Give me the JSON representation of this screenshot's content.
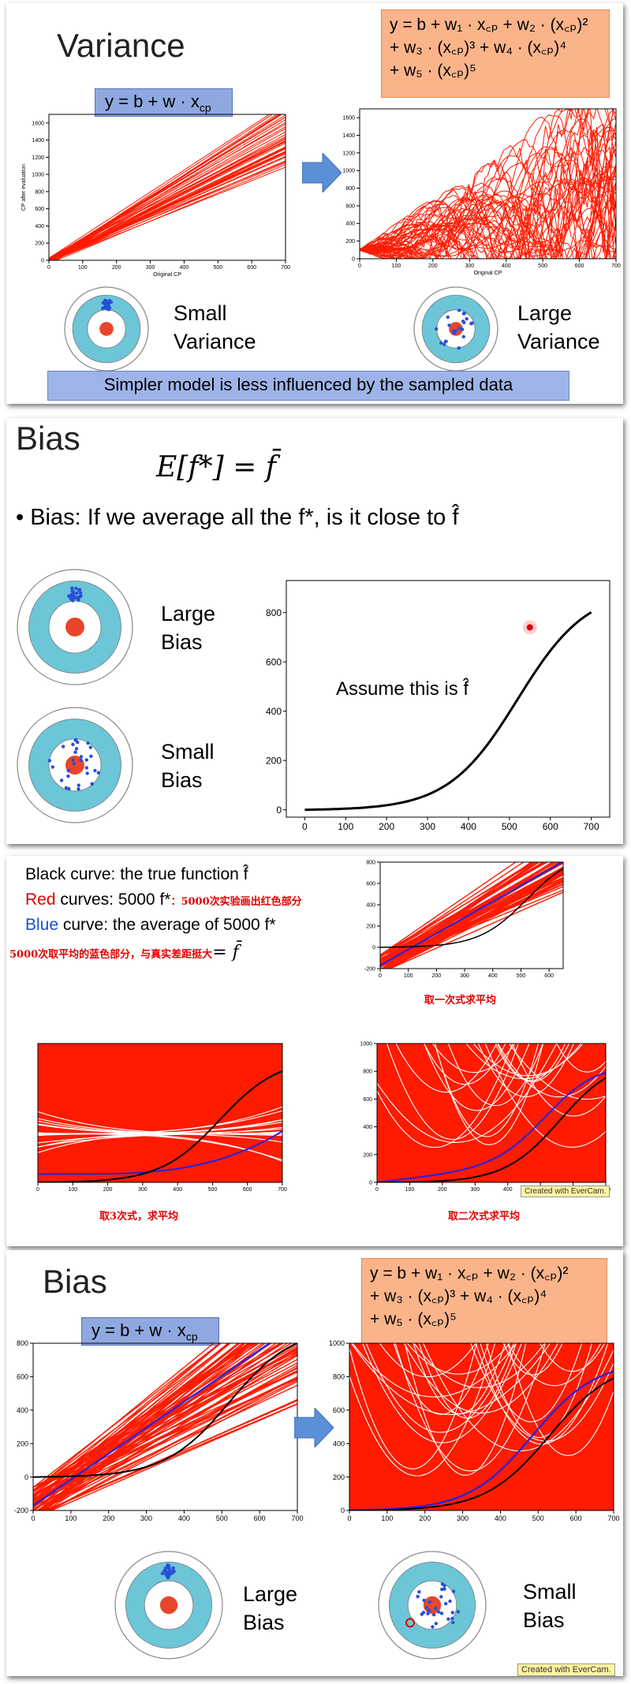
{
  "slide1": {
    "title": "Variance",
    "model_simple": "y = b + w · x",
    "model_simple_sub": "cp",
    "model_complex_lines": [
      "y = b + w₁ · x꜀ₚ + w₂ · (x꜀ₚ)²",
      "+ w₃ · (x꜀ₚ)³ + w₄ · (x꜀ₚ)⁴",
      "+ w₅ · (x꜀ₚ)⁵"
    ],
    "left_label": "Small\nVariance",
    "left_label_1": "Small",
    "left_label_2": "Variance",
    "right_label_1": "Large",
    "right_label_2": "Variance",
    "caption": "Simpler model is less influenced by the sampled data",
    "xlabel": "Original CP",
    "ylabel": "CP after evaluation"
  },
  "slide2": {
    "title": "Bias",
    "equation": "E[f*] = f̄",
    "bullet": "• Bias: If we average all the f*, is it close to f̂",
    "large_1": "Large",
    "large_2": "Bias",
    "small_1": "Small",
    "small_2": "Bias",
    "annotation": "Assume this is f̂"
  },
  "slide3": {
    "line1_black": "Black",
    "line1_rest": " curve: the true function f̂",
    "line2_red": "Red",
    "line2_rest": " curves: 5000 f*",
    "line2_cn": "：5000次实验画出红色部分",
    "line3_blue": "Blue",
    "line3_rest": " curve: the average of 5000 f*",
    "line4_cn": "5000次取平均的蓝色部分，与真实差距挺大",
    "line4_eq": "= f̄",
    "cap_linear": "取一次式求平均",
    "cap_cubic": "取3次式，求平均",
    "cap_quad": "取二次式求平均",
    "watermark": "Created with EverCam."
  },
  "slide4": {
    "title": "Bias",
    "model_simple": "y = b + w · x",
    "model_simple_sub": "cp",
    "model_complex_lines": [
      "y = b + w₁ · x꜀ₚ + w₂ · (x꜀ₚ)²",
      "+ w₃ · (x꜀ₚ)³ + w₄ · (x꜀ₚ)⁴",
      "+ w₅ · (x꜀ₚ)⁵"
    ],
    "left_1": "Large",
    "left_2": "Bias",
    "right_1": "Small",
    "right_2": "Bias",
    "watermark": "Created with EverCam."
  },
  "axes": {
    "x_ticks_700": [
      "0",
      "100",
      "200",
      "300",
      "400",
      "500",
      "600",
      "700"
    ],
    "x_ticks_600": [
      "0",
      "100",
      "200",
      "300",
      "400",
      "500",
      "600"
    ],
    "y_ticks_1600": [
      "0",
      "200",
      "400",
      "600",
      "800",
      "1000",
      "1200",
      "1400",
      "1600"
    ],
    "y_ticks_800": [
      "0",
      "200",
      "400",
      "600",
      "800"
    ],
    "y_ticks_800n": [
      "-200",
      "0",
      "200",
      "400",
      "600",
      "800"
    ],
    "y_ticks_1000": [
      "0",
      "200",
      "400",
      "600",
      "800",
      "1000"
    ]
  },
  "colors": {
    "red": "#ff1a00",
    "blue": "#2323e0",
    "target_blue": "#6cc6d8",
    "target_red": "#e8462a",
    "formula_orange": "#fbb48a",
    "formula_blue": "#8fa8e0"
  }
}
